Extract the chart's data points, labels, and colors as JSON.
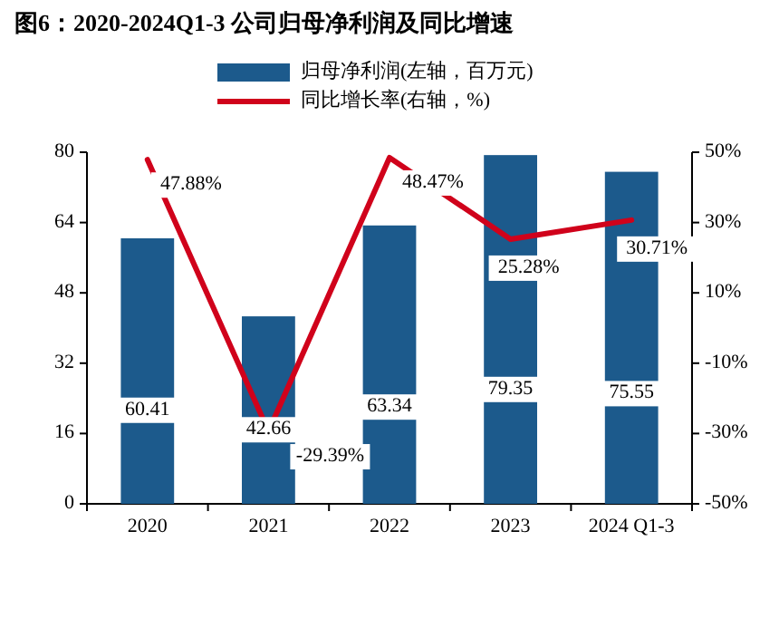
{
  "chart_data": {
    "type": "bar",
    "title": "图6：2020-2024Q1-3 公司归母净利润及同比增速",
    "categories": [
      "2020",
      "2021",
      "2022",
      "2023",
      "2024 Q1-3"
    ],
    "series": [
      {
        "name": "归母净利润(左轴，百万元)",
        "type": "bar",
        "color": "#1c5a8c",
        "values": [
          60.41,
          42.66,
          63.34,
          79.35,
          75.55
        ]
      },
      {
        "name": "同比增长率(右轴，%)",
        "type": "line",
        "axis": "y2",
        "color": "#d0021b",
        "values": [
          47.88,
          -29.39,
          48.47,
          25.28,
          30.71
        ],
        "value_labels": [
          "47.88%",
          "-29.39%",
          "48.47%",
          "25.28%",
          "30.71%"
        ]
      }
    ],
    "ylim": [
      0,
      80
    ],
    "yticks": [
      0,
      16,
      32,
      48,
      64,
      80
    ],
    "y2lim": [
      -50,
      50
    ],
    "y2ticks": [
      {
        "value": -50,
        "label": "-50%"
      },
      {
        "value": -30,
        "label": "-30%"
      },
      {
        "value": -10,
        "label": "-10%"
      },
      {
        "value": 10,
        "label": "10%"
      },
      {
        "value": 30,
        "label": "30%"
      },
      {
        "value": 50,
        "label": "50%"
      }
    ],
    "data_labels": true,
    "legend": "top",
    "grid": false,
    "marker": "none",
    "line_style": "solid"
  }
}
